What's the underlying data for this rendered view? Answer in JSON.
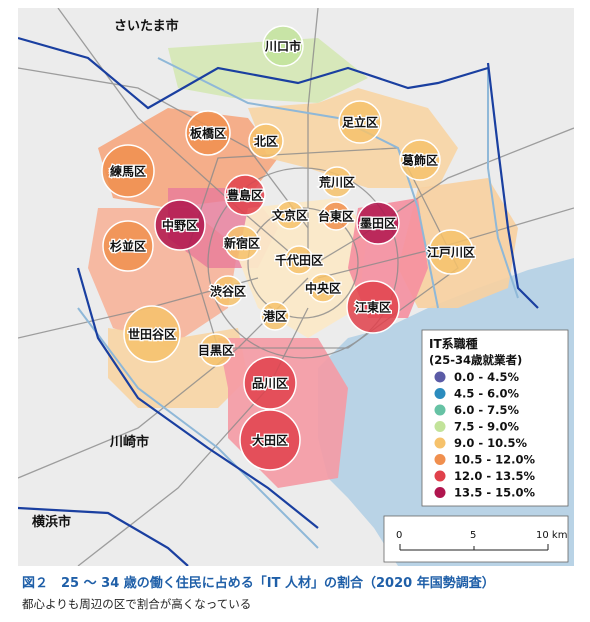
{
  "map": {
    "cities": [
      {
        "id": "saitama",
        "label": "さいたま市"
      },
      {
        "id": "kawasaki",
        "label": "川崎市"
      },
      {
        "id": "yokohama",
        "label": "横浜市"
      }
    ],
    "wards": [
      {
        "id": "kawaguchi",
        "label": "川口市",
        "bin": 3
      },
      {
        "id": "itabashi",
        "label": "板橋区",
        "bin": 5
      },
      {
        "id": "kita",
        "label": "北区",
        "bin": 4
      },
      {
        "id": "adachi",
        "label": "足立区",
        "bin": 4
      },
      {
        "id": "nerima",
        "label": "練馬区",
        "bin": 5
      },
      {
        "id": "katsushika",
        "label": "葛飾区",
        "bin": 4
      },
      {
        "id": "arakawa",
        "label": "荒川区",
        "bin": 4
      },
      {
        "id": "toshima",
        "label": "豊島区",
        "bin": 6
      },
      {
        "id": "bunkyo",
        "label": "文京区",
        "bin": 4
      },
      {
        "id": "taito",
        "label": "台東区",
        "bin": 5
      },
      {
        "id": "sumida",
        "label": "墨田区",
        "bin": 7
      },
      {
        "id": "nakano",
        "label": "中野区",
        "bin": 7
      },
      {
        "id": "suginami",
        "label": "杉並区",
        "bin": 5
      },
      {
        "id": "shinjuku",
        "label": "新宿区",
        "bin": 4
      },
      {
        "id": "chiyoda",
        "label": "千代田区",
        "bin": 4
      },
      {
        "id": "edogawa",
        "label": "江戸川区",
        "bin": 4
      },
      {
        "id": "shibuya",
        "label": "渋谷区",
        "bin": 4
      },
      {
        "id": "chuo",
        "label": "中央区",
        "bin": 4
      },
      {
        "id": "koto",
        "label": "江東区",
        "bin": 6
      },
      {
        "id": "minato",
        "label": "港区",
        "bin": 4
      },
      {
        "id": "setagaya",
        "label": "世田谷区",
        "bin": 4
      },
      {
        "id": "meguro",
        "label": "目黒区",
        "bin": 4
      },
      {
        "id": "shinagawa",
        "label": "品川区",
        "bin": 6
      },
      {
        "id": "ota",
        "label": "大田区",
        "bin": 6
      }
    ]
  },
  "legend": {
    "title": "IT系職種",
    "subtitle": "(25-34歳就業者)",
    "items": [
      {
        "label": "0.0 - 4.5%",
        "color": "#5b5ba6"
      },
      {
        "label": "4.5 - 6.0%",
        "color": "#2b8cbe"
      },
      {
        "label": "6.0 - 7.5%",
        "color": "#66c2a4"
      },
      {
        "label": "7.5 - 9.0%",
        "color": "#c2e39a"
      },
      {
        "label": "9.0 - 10.5%",
        "color": "#f6c26b"
      },
      {
        "label": "10.5 - 12.0%",
        "color": "#f08f4e"
      },
      {
        "label": "12.0 - 13.5%",
        "color": "#e0414b"
      },
      {
        "label": "13.5 - 15.0%",
        "color": "#b0154e"
      }
    ]
  },
  "scalebar": {
    "ticks": [
      "0",
      "5",
      "10 km"
    ]
  },
  "caption": {
    "title": "図２　25 〜 34 歳の働く住民に占める「IT 人材」の割合（2020 年国勢調査）",
    "subtitle": "都心よりも周辺の区で割合が高くなっている"
  }
}
